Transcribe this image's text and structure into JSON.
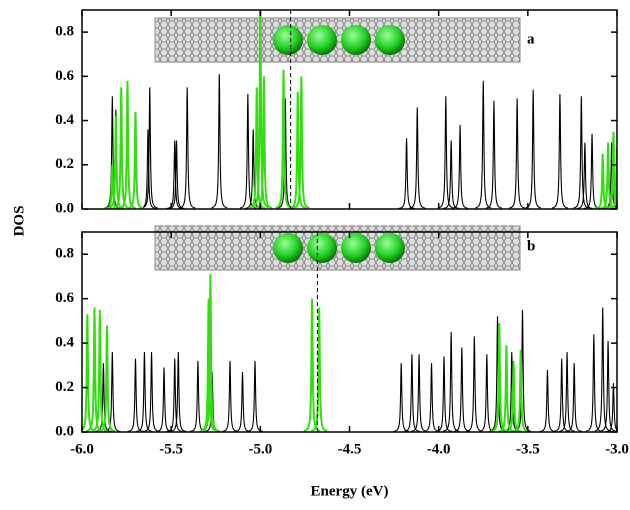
{
  "chart_data": [
    {
      "type": "spectrum",
      "label": "a",
      "ylabel": "DOS",
      "xlim": [
        -6,
        -3
      ],
      "xticks": [
        -6,
        -5.5,
        -5,
        -4.5,
        -4,
        -3.5,
        -3
      ],
      "ylim": [
        0,
        0.9
      ],
      "yticks": [
        {
          "value": 0,
          "label": "0.0"
        },
        0.2,
        0.4,
        0.6,
        0.8
      ],
      "vlines": [
        -4.83
      ],
      "series": [
        {
          "color": "#000000",
          "x": [
            -5.83,
            -5.81,
            -5.63,
            -5.62,
            -5.48,
            -5.47,
            -5.41,
            -5.23,
            -5.07,
            -5.04,
            -4.86,
            -4.18,
            -4.12,
            -3.96,
            -3.93,
            -3.88,
            -3.75,
            -3.69,
            -3.56,
            -3.47,
            -3.32,
            -3.2,
            -3.18,
            -3.14,
            -3.03
          ],
          "values": [
            0.51,
            0.45,
            0.36,
            0.55,
            0.31,
            0.31,
            0.55,
            0.61,
            0.52,
            0.36,
            0.5,
            0.32,
            0.46,
            0.51,
            0.31,
            0.38,
            0.58,
            0.49,
            0.5,
            0.54,
            0.52,
            0.51,
            0.3,
            0.34,
            0.3
          ]
        },
        {
          "color": "#33dd11",
          "x": [
            -5.83,
            -5.81,
            -5.78,
            -5.745,
            -5.7,
            -5.02,
            -5.0,
            -4.98,
            -4.87,
            -4.79,
            -4.77,
            -3.08,
            -3.05,
            -3.02,
            -3.0
          ],
          "values": [
            0.2,
            0.42,
            0.55,
            0.58,
            0.44,
            0.55,
            0.95,
            0.6,
            0.63,
            0.53,
            0.6,
            0.25,
            0.3,
            0.35,
            0.28
          ]
        }
      ]
    },
    {
      "type": "spectrum",
      "label": "b",
      "xlabel": "Energy (eV)",
      "xlim": [
        -6,
        -3
      ],
      "xticks": [
        {
          "value": -6,
          "label": "-6.0"
        },
        -5.5,
        {
          "value": -5,
          "label": "-5.0"
        },
        -4.5,
        {
          "value": -4,
          "label": "-4.0"
        },
        -3.5,
        {
          "value": -3,
          "label": "-3.0"
        }
      ],
      "ylim": [
        0,
        0.9
      ],
      "yticks": [
        {
          "value": 0,
          "label": "0.0"
        },
        0.2,
        0.4,
        0.6,
        0.8
      ],
      "vlines": [
        -4.68
      ],
      "series": [
        {
          "color": "#000000",
          "x": [
            -5.88,
            -5.83,
            -5.7,
            -5.65,
            -5.61,
            -5.54,
            -5.48,
            -5.46,
            -5.35,
            -5.27,
            -5.17,
            -5.1,
            -5.03,
            -4.21,
            -4.15,
            -4.11,
            -4.04,
            -3.97,
            -3.93,
            -3.87,
            -3.8,
            -3.73,
            -3.67,
            -3.59,
            -3.53,
            -3.39,
            -3.31,
            -3.28,
            -3.24,
            -3.13,
            -3.08,
            -3.05,
            -3.02
          ],
          "values": [
            0.31,
            0.36,
            0.33,
            0.36,
            0.36,
            0.29,
            0.33,
            0.36,
            0.32,
            0.27,
            0.32,
            0.27,
            0.32,
            0.31,
            0.35,
            0.35,
            0.31,
            0.34,
            0.45,
            0.38,
            0.43,
            0.35,
            0.52,
            0.36,
            0.55,
            0.28,
            0.33,
            0.36,
            0.31,
            0.44,
            0.56,
            0.41,
            0.22
          ]
        },
        {
          "color": "#33dd11",
          "x": [
            -5.97,
            -5.93,
            -5.9,
            -5.86,
            -5.29,
            -5.28,
            -4.71,
            -4.67,
            -3.66,
            -3.62,
            -3.58,
            -3.54
          ],
          "values": [
            0.53,
            0.56,
            0.55,
            0.48,
            0.6,
            0.71,
            0.6,
            0.56,
            0.49,
            0.39,
            0.32,
            0.37
          ]
        }
      ]
    }
  ]
}
